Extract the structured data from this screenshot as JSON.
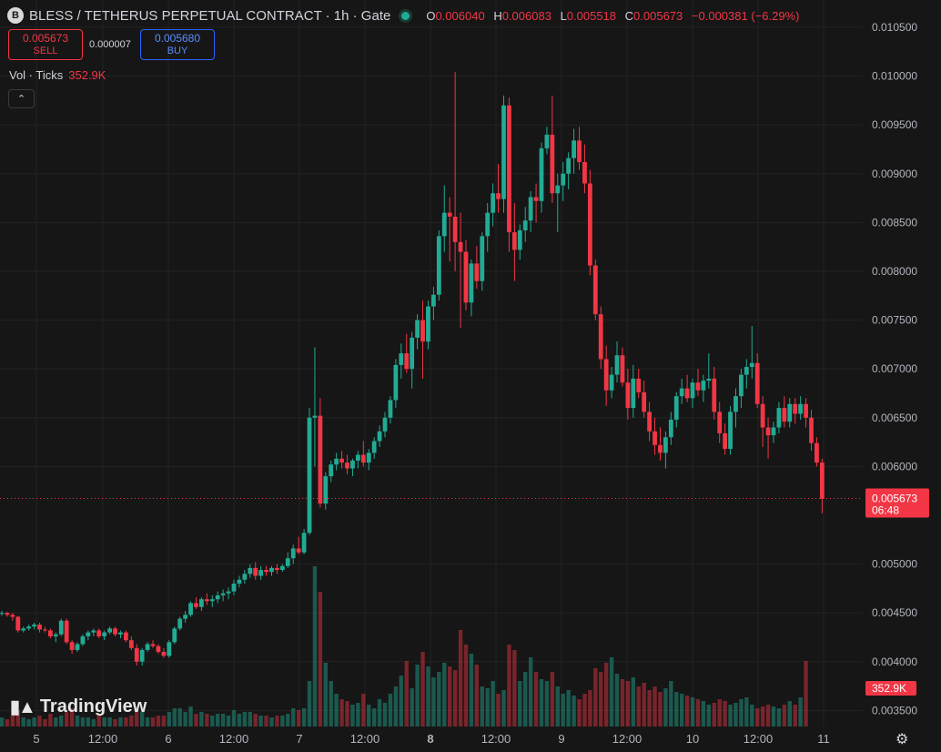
{
  "header": {
    "symbol_icon": "B",
    "title": "BLESS / TETHERUS PERPETUAL CONTRACT · 1h · Gate",
    "ohlc": {
      "open_label": "O",
      "open": "0.006040",
      "high_label": "H",
      "high": "0.006083",
      "low_label": "L",
      "low": "0.005518",
      "close_label": "C",
      "close": "0.005673",
      "change": "−0.000381 (−6.29%)"
    }
  },
  "trade": {
    "sell_price": "0.005673",
    "sell_label": "SELL",
    "spread": "0.000007",
    "buy_price": "0.005680",
    "buy_label": "BUY"
  },
  "volume_indicator": {
    "label": "Vol · Ticks",
    "value": "352.9K"
  },
  "branding": {
    "name": "TradingView",
    "logo_icon": "tradingview-logo-icon"
  },
  "colors": {
    "up": "#22ab94",
    "down": "#f23645",
    "background": "#161616",
    "grid": "#232323"
  },
  "chart_data": {
    "type": "candlestick",
    "interval": "1h",
    "y_axis": {
      "ticks": [
        "0.010500",
        "0.010000",
        "0.009500",
        "0.009000",
        "0.008500",
        "0.008000",
        "0.007500",
        "0.007000",
        "0.006500",
        "0.006000",
        "0.005000",
        "0.004500",
        "0.004000",
        "0.003500"
      ],
      "range": [
        0.00337,
        0.01074
      ]
    },
    "x_axis": {
      "ticks": [
        "5",
        "12:00",
        "6",
        "12:00",
        "7",
        "12:00",
        "8",
        "12:00",
        "9",
        "12:00",
        "10",
        "12:00",
        "11"
      ]
    },
    "last_price": {
      "value": "0.005673",
      "countdown": "06:48"
    },
    "volume_last": "352.9K",
    "ohlc": [
      [
        0.0045,
        0.00452,
        0.00447,
        0.0045
      ],
      [
        0.0045,
        0.00451,
        0.00446,
        0.00448
      ],
      [
        0.00448,
        0.0045,
        0.00442,
        0.00446
      ],
      [
        0.00446,
        0.00447,
        0.0043,
        0.00432
      ],
      [
        0.00432,
        0.00436,
        0.0043,
        0.00434
      ],
      [
        0.00434,
        0.00438,
        0.00432,
        0.00436
      ],
      [
        0.00436,
        0.0044,
        0.00433,
        0.00438
      ],
      [
        0.00438,
        0.0044,
        0.0043,
        0.00433
      ],
      [
        0.00433,
        0.00436,
        0.0043,
        0.00432
      ],
      [
        0.00432,
        0.00434,
        0.00424,
        0.00426
      ],
      [
        0.00426,
        0.0043,
        0.0042,
        0.00428
      ],
      [
        0.00428,
        0.00444,
        0.00426,
        0.00442
      ],
      [
        0.00442,
        0.00444,
        0.00418,
        0.0042
      ],
      [
        0.0042,
        0.00422,
        0.00408,
        0.00412
      ],
      [
        0.00412,
        0.0042,
        0.0041,
        0.00418
      ],
      [
        0.00418,
        0.00428,
        0.00416,
        0.00426
      ],
      [
        0.00426,
        0.00432,
        0.00422,
        0.0043
      ],
      [
        0.0043,
        0.00434,
        0.00426,
        0.00432
      ],
      [
        0.00432,
        0.00434,
        0.00424,
        0.00426
      ],
      [
        0.00426,
        0.00432,
        0.00422,
        0.0043
      ],
      [
        0.0043,
        0.00436,
        0.00428,
        0.00434
      ],
      [
        0.00434,
        0.00436,
        0.00426,
        0.00428
      ],
      [
        0.00428,
        0.00432,
        0.00424,
        0.0043
      ],
      [
        0.0043,
        0.00432,
        0.0042,
        0.00422
      ],
      [
        0.00422,
        0.00426,
        0.00412,
        0.00414
      ],
      [
        0.00414,
        0.00418,
        0.00396,
        0.004
      ],
      [
        0.004,
        0.00414,
        0.00396,
        0.00412
      ],
      [
        0.00412,
        0.0042,
        0.0041,
        0.00418
      ],
      [
        0.00418,
        0.00422,
        0.00414,
        0.00416
      ],
      [
        0.00416,
        0.00418,
        0.00408,
        0.0041
      ],
      [
        0.0041,
        0.00414,
        0.00404,
        0.00406
      ],
      [
        0.00406,
        0.00422,
        0.00404,
        0.0042
      ],
      [
        0.0042,
        0.00436,
        0.00418,
        0.00434
      ],
      [
        0.00434,
        0.00446,
        0.00432,
        0.00444
      ],
      [
        0.00444,
        0.00452,
        0.0044,
        0.00448
      ],
      [
        0.00448,
        0.00462,
        0.00446,
        0.0046
      ],
      [
        0.0046,
        0.00466,
        0.00454,
        0.00456
      ],
      [
        0.00456,
        0.00466,
        0.00452,
        0.00464
      ],
      [
        0.00464,
        0.0047,
        0.00458,
        0.00462
      ],
      [
        0.00462,
        0.00468,
        0.00456,
        0.00464
      ],
      [
        0.00464,
        0.00472,
        0.0046,
        0.00468
      ],
      [
        0.00468,
        0.00474,
        0.00462,
        0.0047
      ],
      [
        0.0047,
        0.00476,
        0.00464,
        0.00472
      ],
      [
        0.00472,
        0.00484,
        0.00468,
        0.0048
      ],
      [
        0.0048,
        0.00488,
        0.00476,
        0.00484
      ],
      [
        0.00484,
        0.00494,
        0.0048,
        0.0049
      ],
      [
        0.0049,
        0.005,
        0.00486,
        0.00496
      ],
      [
        0.00496,
        0.00502,
        0.00484,
        0.00488
      ],
      [
        0.00488,
        0.00498,
        0.00484,
        0.00494
      ],
      [
        0.00494,
        0.00498,
        0.00488,
        0.00492
      ],
      [
        0.00492,
        0.00498,
        0.00488,
        0.00496
      ],
      [
        0.00496,
        0.005,
        0.0049,
        0.00494
      ],
      [
        0.00494,
        0.005,
        0.00492,
        0.00498
      ],
      [
        0.00498,
        0.00512,
        0.00496,
        0.00506
      ],
      [
        0.00506,
        0.0052,
        0.005,
        0.00516
      ],
      [
        0.00516,
        0.00528,
        0.0051,
        0.00512
      ],
      [
        0.00512,
        0.00536,
        0.0051,
        0.00532
      ],
      [
        0.00532,
        0.0066,
        0.0053,
        0.0065
      ],
      [
        0.0065,
        0.00722,
        0.006,
        0.00652
      ],
      [
        0.00652,
        0.0067,
        0.00558,
        0.00562
      ],
      [
        0.00562,
        0.00594,
        0.00556,
        0.0059
      ],
      [
        0.0059,
        0.00606,
        0.00584,
        0.00602
      ],
      [
        0.00602,
        0.00614,
        0.00596,
        0.00608
      ],
      [
        0.00608,
        0.00616,
        0.00598,
        0.00604
      ],
      [
        0.00604,
        0.00612,
        0.00592,
        0.00598
      ],
      [
        0.00598,
        0.00608,
        0.0059,
        0.00606
      ],
      [
        0.00606,
        0.00616,
        0.00598,
        0.00612
      ],
      [
        0.00612,
        0.00626,
        0.006,
        0.00604
      ],
      [
        0.00604,
        0.00618,
        0.00596,
        0.00614
      ],
      [
        0.00614,
        0.0063,
        0.00608,
        0.00626
      ],
      [
        0.00626,
        0.00642,
        0.0062,
        0.00636
      ],
      [
        0.00636,
        0.00656,
        0.0063,
        0.0065
      ],
      [
        0.0065,
        0.00672,
        0.00644,
        0.00668
      ],
      [
        0.00668,
        0.0071,
        0.0066,
        0.00704
      ],
      [
        0.00704,
        0.00726,
        0.0069,
        0.00716
      ],
      [
        0.00716,
        0.00736,
        0.00696,
        0.007
      ],
      [
        0.007,
        0.00738,
        0.0068,
        0.00732
      ],
      [
        0.00732,
        0.00756,
        0.0072,
        0.0075
      ],
      [
        0.0075,
        0.0077,
        0.0069,
        0.00728
      ],
      [
        0.00728,
        0.0077,
        0.0072,
        0.00764
      ],
      [
        0.00764,
        0.00784,
        0.0075,
        0.00776
      ],
      [
        0.00776,
        0.00842,
        0.0077,
        0.00836
      ],
      [
        0.00836,
        0.00888,
        0.0082,
        0.0086
      ],
      [
        0.0086,
        0.00876,
        0.0081,
        0.00856
      ],
      [
        0.00856,
        0.01004,
        0.008,
        0.0083
      ],
      [
        0.0083,
        0.0086,
        0.00742,
        0.0082
      ],
      [
        0.0082,
        0.00832,
        0.0076,
        0.00768
      ],
      [
        0.00768,
        0.00812,
        0.00754,
        0.00808
      ],
      [
        0.00808,
        0.00826,
        0.00782,
        0.0079
      ],
      [
        0.0079,
        0.0084,
        0.0078,
        0.00836
      ],
      [
        0.00836,
        0.0087,
        0.0082,
        0.0086
      ],
      [
        0.0086,
        0.0089,
        0.00846,
        0.0088
      ],
      [
        0.0088,
        0.0091,
        0.0086,
        0.00874
      ],
      [
        0.00874,
        0.0098,
        0.0086,
        0.0097
      ],
      [
        0.0097,
        0.00978,
        0.0082,
        0.0084
      ],
      [
        0.0084,
        0.0087,
        0.0079,
        0.00822
      ],
      [
        0.00822,
        0.00848,
        0.00812,
        0.00842
      ],
      [
        0.00842,
        0.00866,
        0.0083,
        0.00852
      ],
      [
        0.00852,
        0.00882,
        0.0084,
        0.00876
      ],
      [
        0.00876,
        0.0089,
        0.0085,
        0.00872
      ],
      [
        0.00872,
        0.00932,
        0.0086,
        0.00926
      ],
      [
        0.00926,
        0.00948,
        0.0092,
        0.0094
      ],
      [
        0.0094,
        0.0098,
        0.0087,
        0.0088
      ],
      [
        0.0088,
        0.009,
        0.0084,
        0.00888
      ],
      [
        0.00888,
        0.00912,
        0.00872,
        0.009
      ],
      [
        0.009,
        0.00922,
        0.00884,
        0.00916
      ],
      [
        0.00916,
        0.00946,
        0.009,
        0.00934
      ],
      [
        0.00934,
        0.00948,
        0.00904,
        0.00912
      ],
      [
        0.00912,
        0.0093,
        0.0088,
        0.0089
      ],
      [
        0.0089,
        0.00904,
        0.00796,
        0.00806
      ],
      [
        0.00806,
        0.00812,
        0.0075,
        0.00756
      ],
      [
        0.00756,
        0.00764,
        0.007,
        0.0071
      ],
      [
        0.0071,
        0.00724,
        0.00662,
        0.00678
      ],
      [
        0.00678,
        0.00702,
        0.0067,
        0.00694
      ],
      [
        0.00694,
        0.00728,
        0.00686,
        0.00714
      ],
      [
        0.00714,
        0.00722,
        0.00682,
        0.00686
      ],
      [
        0.00686,
        0.007,
        0.00648,
        0.0066
      ],
      [
        0.0066,
        0.00704,
        0.0065,
        0.0069
      ],
      [
        0.0069,
        0.007,
        0.0067,
        0.00676
      ],
      [
        0.00676,
        0.00688,
        0.0065,
        0.00656
      ],
      [
        0.00656,
        0.00666,
        0.00626,
        0.00636
      ],
      [
        0.00636,
        0.0065,
        0.00612,
        0.00622
      ],
      [
        0.00622,
        0.0064,
        0.00606,
        0.00614
      ],
      [
        0.00614,
        0.00636,
        0.00598,
        0.0063
      ],
      [
        0.0063,
        0.00656,
        0.00622,
        0.00648
      ],
      [
        0.00648,
        0.00676,
        0.0064,
        0.00672
      ],
      [
        0.00672,
        0.0069,
        0.00664,
        0.0068
      ],
      [
        0.0068,
        0.00694,
        0.00666,
        0.0067
      ],
      [
        0.0067,
        0.0069,
        0.0066,
        0.00686
      ],
      [
        0.00686,
        0.007,
        0.00672,
        0.00678
      ],
      [
        0.00678,
        0.00694,
        0.00666,
        0.00688
      ],
      [
        0.00688,
        0.00716,
        0.0068,
        0.0069
      ],
      [
        0.0069,
        0.00702,
        0.00648,
        0.00656
      ],
      [
        0.00656,
        0.00666,
        0.00624,
        0.00634
      ],
      [
        0.00634,
        0.00644,
        0.00612,
        0.00618
      ],
      [
        0.00618,
        0.00662,
        0.00612,
        0.00656
      ],
      [
        0.00656,
        0.0068,
        0.0064,
        0.00672
      ],
      [
        0.00672,
        0.007,
        0.0066,
        0.00694
      ],
      [
        0.00694,
        0.0071,
        0.0068,
        0.00702
      ],
      [
        0.00702,
        0.00744,
        0.0069,
        0.00706
      ],
      [
        0.00706,
        0.00716,
        0.0066,
        0.00664
      ],
      [
        0.00664,
        0.00672,
        0.0062,
        0.0064
      ],
      [
        0.0064,
        0.0065,
        0.00608,
        0.00632
      ],
      [
        0.00632,
        0.00646,
        0.00624,
        0.0064
      ],
      [
        0.0064,
        0.00666,
        0.00634,
        0.0066
      ],
      [
        0.0066,
        0.00672,
        0.0064,
        0.00646
      ],
      [
        0.00646,
        0.0067,
        0.0064,
        0.00664
      ],
      [
        0.00664,
        0.0067,
        0.00644,
        0.00654
      ],
      [
        0.00654,
        0.00672,
        0.00648,
        0.00664
      ],
      [
        0.00664,
        0.0067,
        0.0064,
        0.0065
      ],
      [
        0.0065,
        0.00658,
        0.00616,
        0.00624
      ],
      [
        0.00624,
        0.0063,
        0.006,
        0.00604
      ],
      [
        0.00604,
        0.00608,
        0.00552,
        0.00567
      ]
    ],
    "volume": [
      0.05,
      0.04,
      0.06,
      0.09,
      0.05,
      0.04,
      0.05,
      0.06,
      0.04,
      0.07,
      0.05,
      0.06,
      0.08,
      0.1,
      0.06,
      0.05,
      0.05,
      0.04,
      0.06,
      0.05,
      0.05,
      0.04,
      0.05,
      0.05,
      0.06,
      0.09,
      0.08,
      0.05,
      0.05,
      0.06,
      0.06,
      0.08,
      0.1,
      0.1,
      0.08,
      0.11,
      0.07,
      0.08,
      0.07,
      0.06,
      0.07,
      0.07,
      0.06,
      0.09,
      0.07,
      0.08,
      0.08,
      0.07,
      0.06,
      0.06,
      0.05,
      0.06,
      0.06,
      0.07,
      0.1,
      0.09,
      0.1,
      0.25,
      0.88,
      0.74,
      0.35,
      0.25,
      0.18,
      0.15,
      0.14,
      0.12,
      0.13,
      0.18,
      0.12,
      0.1,
      0.15,
      0.13,
      0.18,
      0.22,
      0.28,
      0.36,
      0.21,
      0.34,
      0.41,
      0.33,
      0.27,
      0.3,
      0.35,
      0.33,
      0.31,
      0.53,
      0.45,
      0.4,
      0.34,
      0.22,
      0.21,
      0.25,
      0.18,
      0.2,
      0.45,
      0.42,
      0.25,
      0.3,
      0.38,
      0.3,
      0.26,
      0.25,
      0.3,
      0.22,
      0.18,
      0.2,
      0.17,
      0.15,
      0.18,
      0.2,
      0.32,
      0.3,
      0.35,
      0.38,
      0.29,
      0.26,
      0.25,
      0.27,
      0.22,
      0.24,
      0.2,
      0.22,
      0.19,
      0.21,
      0.25,
      0.19,
      0.18,
      0.17,
      0.16,
      0.15,
      0.14,
      0.12,
      0.13,
      0.15,
      0.14,
      0.12,
      0.13,
      0.15,
      0.16,
      0.12,
      0.1,
      0.11,
      0.12,
      0.11,
      0.1,
      0.12,
      0.14,
      0.12,
      0.16,
      0.36
    ]
  }
}
